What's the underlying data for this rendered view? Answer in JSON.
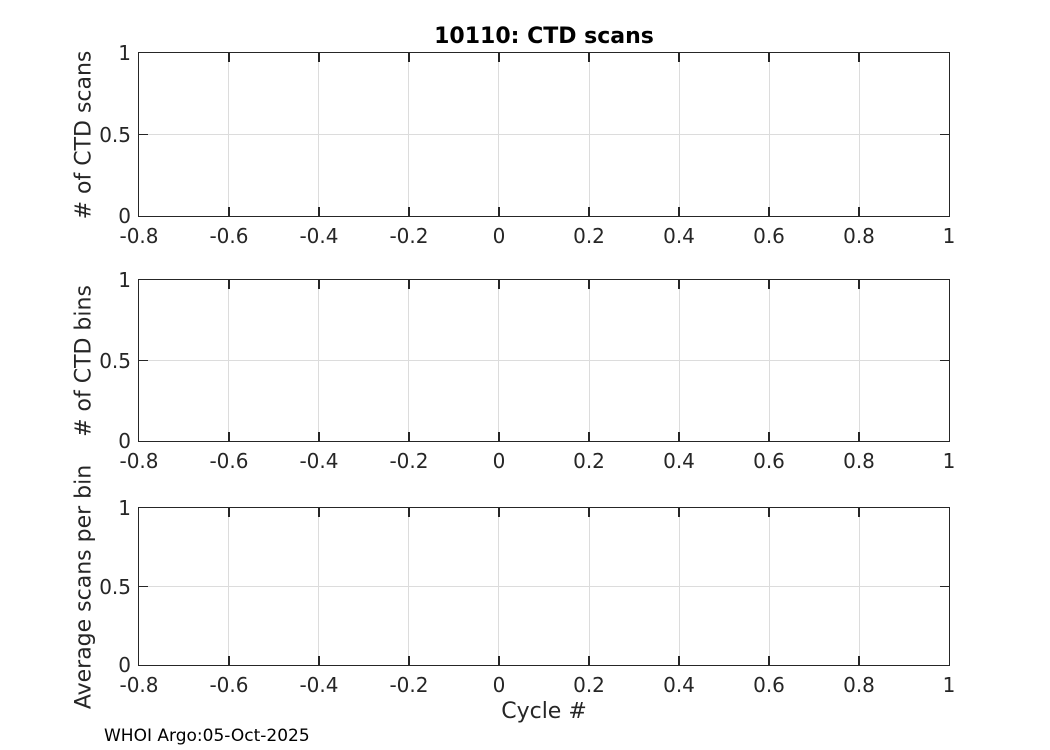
{
  "figure": {
    "title": "10110: CTD scans",
    "footer": "WHOI Argo:05-Oct-2025",
    "colors": {
      "axis": "#262626",
      "grid": "#dcdcdc",
      "title": "#000000",
      "background": "#ffffff"
    }
  },
  "chart_data": [
    {
      "type": "line",
      "title": "10110: CTD scans",
      "ylabel": "# of CTD scans",
      "xlabel": "",
      "xlim": [
        -0.8,
        1
      ],
      "ylim": [
        0,
        1
      ],
      "xticks": [
        -0.8,
        -0.6,
        -0.4,
        -0.2,
        0,
        0.2,
        0.4,
        0.6,
        0.8,
        1
      ],
      "xtick_labels": [
        "-0.8",
        "-0.6",
        "-0.4",
        "-0.2",
        "0",
        "0.2",
        "0.4",
        "0.6",
        "0.8",
        "1"
      ],
      "yticks": [
        0,
        0.5,
        1
      ],
      "ytick_labels": [
        "0",
        "0.5",
        "1"
      ],
      "grid": true,
      "legend": null,
      "series": []
    },
    {
      "type": "line",
      "title": "",
      "ylabel": "# of CTD bins",
      "xlabel": "",
      "xlim": [
        -0.8,
        1
      ],
      "ylim": [
        0,
        1
      ],
      "xticks": [
        -0.8,
        -0.6,
        -0.4,
        -0.2,
        0,
        0.2,
        0.4,
        0.6,
        0.8,
        1
      ],
      "xtick_labels": [
        "-0.8",
        "-0.6",
        "-0.4",
        "-0.2",
        "0",
        "0.2",
        "0.4",
        "0.6",
        "0.8",
        "1"
      ],
      "yticks": [
        0,
        0.5,
        1
      ],
      "ytick_labels": [
        "0",
        "0.5",
        "1"
      ],
      "grid": true,
      "legend": null,
      "series": []
    },
    {
      "type": "line",
      "title": "",
      "ylabel": "Average scans per bin",
      "xlabel": "Cycle #",
      "xlim": [
        -0.8,
        1
      ],
      "ylim": [
        0,
        1
      ],
      "xticks": [
        -0.8,
        -0.6,
        -0.4,
        -0.2,
        0,
        0.2,
        0.4,
        0.6,
        0.8,
        1
      ],
      "xtick_labels": [
        "-0.8",
        "-0.6",
        "-0.4",
        "-0.2",
        "0",
        "0.2",
        "0.4",
        "0.6",
        "0.8",
        "1"
      ],
      "yticks": [
        0,
        0.5,
        1
      ],
      "ytick_labels": [
        "0",
        "0.5",
        "1"
      ],
      "grid": true,
      "legend": null,
      "series": []
    }
  ]
}
